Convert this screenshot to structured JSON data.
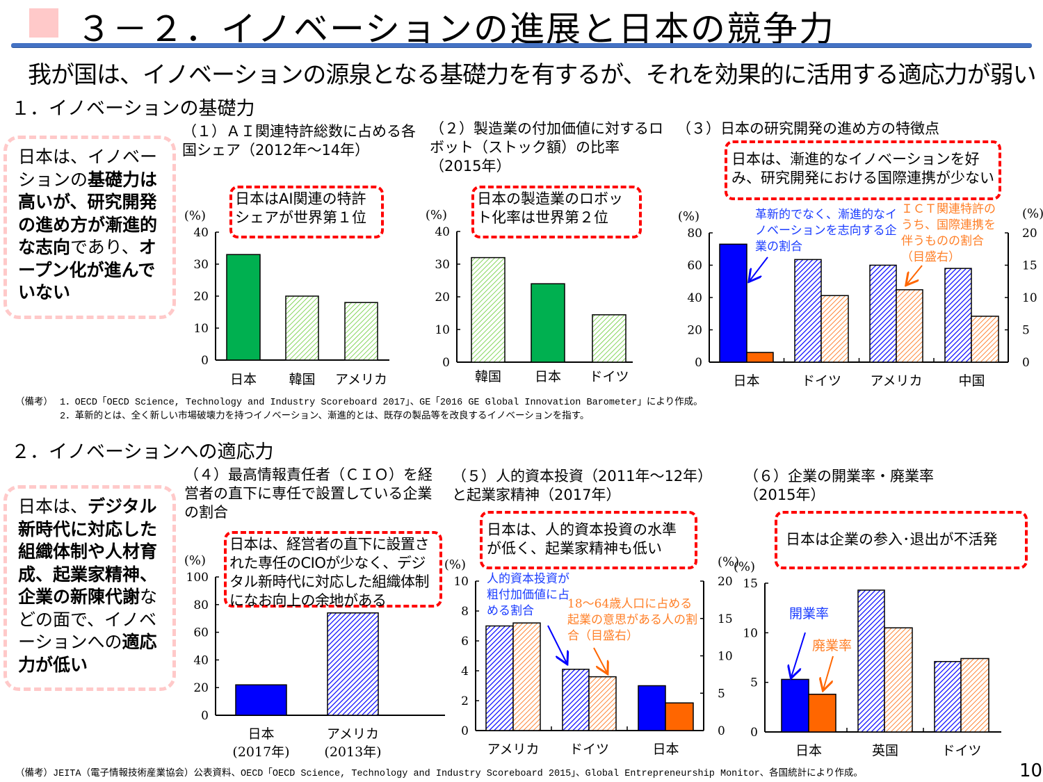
{
  "header": {
    "title": "３－２．イノベーションの進展と日本の競争力",
    "subtitle": "我が国は、イノベーションの源泉となる基礎力を有するが、それを効果的に活用する適応力が弱い",
    "page_number": "10"
  },
  "colors": {
    "accent": "#4472c4",
    "summary_border": "#ffc9c9",
    "callout_border": "#ff0000",
    "green": "#00b050",
    "blue": "#0000ff",
    "orange": "#ff6600"
  },
  "section1": {
    "title": "１．イノベーションの基礎力",
    "summary": [
      "日本は、イノベーションの",
      "基礎力は高いが、研究開発の進め方が漸進的な志向",
      "であり、",
      "オープン化が進んでいない"
    ],
    "footnote_label": "（備考）",
    "footnotes": [
      "1．OECD「OECD Science, Technology and Industry Scoreboard 2017」、GE「2016 GE Global Innovation Barometer」により作成。",
      "2．革新的とは、全く新しい市場破壊力を持つイノベーション、漸進的とは、既存の製品等を改良するイノベーションを指す。"
    ]
  },
  "section2": {
    "title": "２．イノベーションへの適応力",
    "summary": [
      "日本は、",
      "デジタル新時代に対応した組織体制や人材育成、起業家精神、企業の新陳代謝",
      "などの面で、イノベーションへの",
      "適応力が低い"
    ],
    "footnote": "（備考）JEITA（電子情報技術産業協会）公表資料、OECD「OECD Science, Technology and Industry Scoreboard 2015」、Global Entrepreneurship Monitor、各国統計により作成。"
  },
  "chart_data": [
    {
      "id": "c1",
      "type": "bar",
      "title": "（１）ＡＩ関連特許総数に占める各国シェア（2012年～14年）",
      "callout": "日本はAI関連の特許シェアが世界第１位",
      "ylabel": "(%)",
      "ylim": [
        0,
        40
      ],
      "yticks": [
        0,
        10,
        20,
        30,
        40
      ],
      "categories": [
        "日本",
        "韓国",
        "アメリカ"
      ],
      "values": [
        33,
        20,
        18
      ],
      "highlight": "日本"
    },
    {
      "id": "c2",
      "type": "bar",
      "title": "（２）製造業の付加価値に対するロボット（ストック額）の比率（2015年）",
      "callout": "日本の製造業のロボット化率は世界第２位",
      "ylabel": "(%)",
      "ylim": [
        0,
        40
      ],
      "yticks": [
        0,
        10,
        20,
        30,
        40
      ],
      "categories": [
        "韓国",
        "日本",
        "ドイツ"
      ],
      "values": [
        32,
        24,
        14.5
      ],
      "highlight": "日本"
    },
    {
      "id": "c3",
      "type": "bar",
      "title": "（３）日本の研究開発の進め方の特徴点",
      "callout": "日本は、漸進的なイノベーションを好み、研究開発における国際連携が少ない",
      "ylabel": "(%)",
      "ylabel_right": "(%)",
      "ylim": [
        0,
        80
      ],
      "ylim_right": [
        0,
        20
      ],
      "yticks": [
        0,
        20,
        40,
        60,
        80
      ],
      "yticks_right": [
        0,
        5,
        10,
        15,
        20
      ],
      "categories": [
        "日本",
        "ドイツ",
        "アメリカ",
        "中国"
      ],
      "series": [
        {
          "name": "革新的でなく、漸進的なイノベーションを志向する企業の割合",
          "axis": "left",
          "values": [
            73,
            63.5,
            60,
            58
          ]
        },
        {
          "name": "ＩＣＴ関連特許のうち、国際連携を伴うものの割合（目盛右）",
          "axis": "right",
          "values": [
            1.5,
            10.3,
            11.2,
            7.1
          ]
        }
      ],
      "highlight": "日本"
    },
    {
      "id": "c4",
      "type": "bar",
      "title": "（４）最高情報責任者（ＣＩＯ）を経営者の直下に専任で設置している企業の割合",
      "callout": "日本は、経営者の直下に設置された専任のCIOが少なく、デジタル新時代に対応した組織体制になお向上の余地がある",
      "ylabel": "(%)",
      "ylim": [
        0,
        100
      ],
      "yticks": [
        0,
        20,
        40,
        60,
        80,
        100
      ],
      "categories": [
        "日本\n(2017年)",
        "アメリカ\n(2013年)"
      ],
      "values": [
        22,
        74
      ],
      "highlight": "日本\n(2017年)"
    },
    {
      "id": "c5",
      "type": "bar",
      "title": "（５）人的資本投資（2011年～12年）と起業家精神（2017年）",
      "callout": "日本は、人的資本投資の水準が低く、起業家精神も低い",
      "ylabel": "(%)",
      "ylabel_right": "(%)",
      "ylim": [
        0,
        10
      ],
      "ylim_right": [
        0,
        20
      ],
      "yticks": [
        0,
        2,
        4,
        6,
        8,
        10
      ],
      "yticks_right": [
        0,
        5,
        10,
        15,
        20
      ],
      "categories": [
        "アメリカ",
        "ドイツ",
        "日本"
      ],
      "series": [
        {
          "name": "人的資本投資が粗付加価値に占める割合",
          "axis": "left",
          "values": [
            7.0,
            4.1,
            3.0
          ]
        },
        {
          "name": "18～64歳人口に占める起業の意思がある人の割合（目盛右）",
          "axis": "right",
          "values": [
            14.4,
            7.2,
            3.7
          ]
        }
      ],
      "highlight": "日本"
    },
    {
      "id": "c6",
      "type": "bar",
      "title": "（６）企業の開業率・廃業率（2015年）",
      "callout": "日本は企業の参入･退出が不活発",
      "ylabel": "(%)",
      "ylim": [
        0,
        15
      ],
      "yticks": [
        0,
        5,
        10,
        15
      ],
      "categories": [
        "日本",
        "英国",
        "ドイツ"
      ],
      "series": [
        {
          "name": "開業率",
          "axis": "left",
          "values": [
            5.3,
            14.3,
            7.1
          ]
        },
        {
          "name": "廃業率",
          "axis": "left",
          "values": [
            3.8,
            10.5,
            7.4
          ]
        }
      ],
      "highlight": "日本"
    }
  ]
}
